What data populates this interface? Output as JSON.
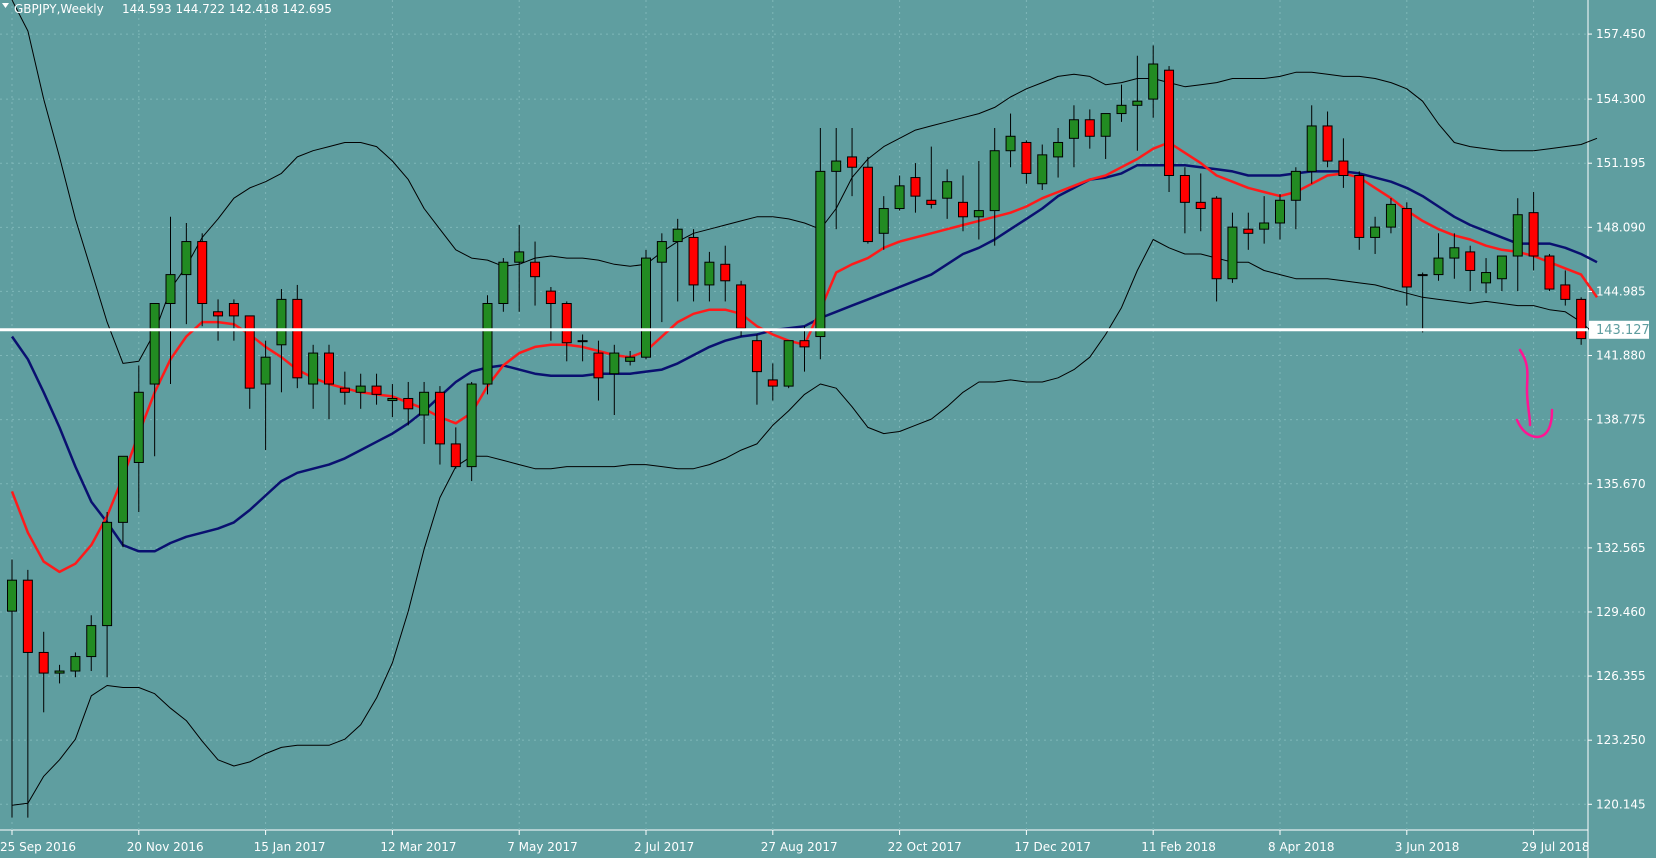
{
  "header": {
    "symbol": "GBPJPY,Weekly",
    "ohlc": "144.593 144.722 142.418 142.695"
  },
  "current_price_label": "143.127",
  "colors": {
    "background": "#5f9ea0",
    "bull": "#228b22",
    "bear": "#ff0000",
    "candle_outline": "#000000",
    "ma_fast": "#ff1a1a",
    "ma_slow": "#0a1070",
    "bands": "#000000",
    "price_line": "#ffffff",
    "annotation": "#ff1493",
    "grid": "#7fb7b8"
  },
  "chart_data": {
    "type": "candlestick",
    "title": "GBPJPY,Weekly",
    "ylim": [
      118.9,
      159.1
    ],
    "y_ticks": [
      "157.450",
      "154.300",
      "151.195",
      "148.090",
      "144.985",
      "141.880",
      "138.775",
      "135.670",
      "132.565",
      "129.460",
      "126.355",
      "123.250",
      "120.145"
    ],
    "x_ticks": [
      {
        "label": "25 Sep 2016",
        "index": 0
      },
      {
        "label": "20 Nov 2016",
        "index": 8
      },
      {
        "label": "15 Jan 2017",
        "index": 16
      },
      {
        "label": "12 Mar 2017",
        "index": 24
      },
      {
        "label": "7 May 2017",
        "index": 32
      },
      {
        "label": "2 Jul 2017",
        "index": 40
      },
      {
        "label": "27 Aug 2017",
        "index": 48
      },
      {
        "label": "22 Oct 2017",
        "index": 56
      },
      {
        "label": "17 Dec 2017",
        "index": 64
      },
      {
        "label": "11 Feb 2018",
        "index": 72
      },
      {
        "label": "8 Apr 2018",
        "index": 80
      },
      {
        "label": "3 Jun 2018",
        "index": 88
      },
      {
        "label": "29 Jul 2018",
        "index": 96
      }
    ],
    "candles": [
      [
        129.5,
        132.0,
        119.5,
        131.0
      ],
      [
        131.0,
        131.5,
        119.5,
        127.5
      ],
      [
        127.5,
        128.5,
        124.6,
        126.5
      ],
      [
        126.5,
        126.9,
        126.0,
        126.6
      ],
      [
        126.6,
        127.5,
        126.3,
        127.3
      ],
      [
        127.3,
        129.3,
        126.6,
        128.8
      ],
      [
        128.8,
        134.3,
        126.3,
        133.8
      ],
      [
        133.8,
        136.9,
        132.6,
        137.0
      ],
      [
        136.7,
        141.4,
        134.3,
        140.1
      ],
      [
        140.5,
        144.3,
        137.0,
        144.4
      ],
      [
        144.4,
        148.6,
        140.5,
        145.8
      ],
      [
        145.8,
        148.3,
        143.4,
        147.4
      ],
      [
        147.4,
        147.8,
        143.3,
        144.4
      ],
      [
        144.0,
        144.6,
        142.6,
        143.8
      ],
      [
        144.4,
        144.6,
        142.6,
        143.8
      ],
      [
        143.8,
        143.6,
        139.3,
        140.3
      ],
      [
        140.5,
        142.6,
        137.3,
        141.8
      ],
      [
        142.4,
        145.1,
        140.1,
        144.6
      ],
      [
        144.6,
        145.3,
        140.3,
        140.8
      ],
      [
        140.5,
        142.4,
        139.3,
        142.0
      ],
      [
        142.0,
        142.4,
        138.8,
        140.5
      ],
      [
        140.3,
        141.1,
        139.5,
        140.1
      ],
      [
        140.1,
        141.0,
        139.3,
        140.4
      ],
      [
        140.4,
        141.0,
        139.5,
        140.0
      ],
      [
        139.7,
        140.5,
        138.9,
        139.8
      ],
      [
        139.8,
        140.6,
        138.5,
        139.3
      ],
      [
        139.0,
        140.6,
        137.6,
        140.1
      ],
      [
        140.1,
        140.4,
        136.6,
        137.6
      ],
      [
        137.6,
        138.4,
        136.4,
        136.5
      ],
      [
        136.5,
        140.6,
        135.8,
        140.5
      ],
      [
        140.5,
        144.8,
        140.0,
        144.4
      ],
      [
        144.4,
        146.6,
        144.0,
        146.4
      ],
      [
        146.4,
        148.2,
        144.0,
        146.9
      ],
      [
        146.4,
        147.4,
        144.3,
        145.7
      ],
      [
        145.0,
        145.2,
        142.6,
        144.4
      ],
      [
        144.4,
        144.5,
        141.6,
        142.5
      ],
      [
        142.6,
        142.9,
        141.6,
        142.6
      ],
      [
        142.0,
        142.6,
        139.7,
        140.8
      ],
      [
        141.0,
        142.4,
        139.0,
        142.0
      ],
      [
        141.6,
        142.1,
        141.4,
        141.8
      ],
      [
        141.8,
        147.0,
        141.7,
        146.6
      ],
      [
        146.4,
        147.8,
        143.5,
        147.4
      ],
      [
        147.4,
        148.5,
        144.5,
        148.0
      ],
      [
        147.6,
        148.0,
        144.5,
        145.3
      ],
      [
        145.3,
        146.9,
        144.5,
        146.4
      ],
      [
        146.3,
        147.2,
        144.5,
        145.5
      ],
      [
        145.3,
        145.5,
        142.8,
        143.2
      ],
      [
        142.6,
        142.9,
        139.5,
        141.1
      ],
      [
        140.7,
        141.5,
        139.7,
        140.4
      ],
      [
        140.4,
        142.6,
        140.3,
        142.6
      ],
      [
        142.6,
        143.3,
        141.1,
        142.3
      ],
      [
        142.8,
        152.9,
        141.7,
        150.8
      ],
      [
        150.8,
        152.9,
        148.0,
        151.3
      ],
      [
        151.5,
        152.9,
        149.6,
        151.0
      ],
      [
        151.0,
        151.5,
        147.3,
        147.4
      ],
      [
        147.8,
        149.6,
        147.0,
        149.0
      ],
      [
        149.0,
        150.6,
        148.9,
        150.1
      ],
      [
        150.5,
        151.2,
        148.8,
        149.6
      ],
      [
        149.4,
        152.0,
        149.0,
        149.2
      ],
      [
        149.5,
        150.9,
        148.5,
        150.3
      ],
      [
        149.3,
        150.6,
        147.9,
        148.6
      ],
      [
        148.6,
        151.3,
        147.5,
        148.9
      ],
      [
        148.9,
        152.9,
        147.2,
        151.8
      ],
      [
        151.8,
        153.6,
        151.0,
        152.5
      ],
      [
        152.2,
        152.3,
        150.2,
        150.7
      ],
      [
        150.2,
        152.1,
        149.9,
        151.6
      ],
      [
        151.5,
        152.9,
        150.5,
        152.2
      ],
      [
        152.4,
        154.0,
        151.0,
        153.3
      ],
      [
        153.3,
        153.8,
        151.9,
        152.5
      ],
      [
        152.5,
        153.5,
        151.4,
        153.6
      ],
      [
        153.6,
        155.0,
        153.2,
        154.0
      ],
      [
        154.0,
        156.4,
        151.8,
        154.2
      ],
      [
        154.3,
        156.9,
        153.4,
        156.0
      ],
      [
        155.7,
        155.9,
        149.8,
        150.6
      ],
      [
        150.6,
        151.0,
        147.8,
        149.3
      ],
      [
        149.3,
        150.7,
        147.9,
        149.0
      ],
      [
        149.5,
        149.6,
        144.5,
        145.6
      ],
      [
        145.6,
        148.8,
        145.4,
        148.1
      ],
      [
        148.0,
        148.8,
        147.0,
        147.8
      ],
      [
        148.0,
        149.6,
        147.3,
        148.3
      ],
      [
        148.3,
        149.7,
        147.5,
        149.4
      ],
      [
        149.4,
        151.0,
        148.0,
        150.8
      ],
      [
        150.8,
        154.0,
        150.2,
        153.0
      ],
      [
        153.0,
        153.7,
        151.0,
        151.3
      ],
      [
        151.3,
        152.4,
        150.0,
        150.6
      ],
      [
        150.6,
        150.8,
        147.0,
        147.6
      ],
      [
        147.6,
        148.6,
        146.8,
        148.1
      ],
      [
        148.1,
        149.5,
        147.8,
        149.2
      ],
      [
        149.0,
        149.3,
        144.3,
        145.2
      ],
      [
        145.8,
        145.9,
        143.0,
        145.8
      ],
      [
        145.8,
        147.8,
        145.5,
        146.6
      ],
      [
        146.6,
        147.8,
        145.6,
        147.1
      ],
      [
        146.9,
        147.2,
        145.0,
        146.0
      ],
      [
        145.4,
        146.6,
        144.9,
        145.9
      ],
      [
        145.6,
        146.5,
        145.0,
        146.7
      ],
      [
        146.7,
        149.5,
        145.0,
        148.7
      ],
      [
        148.8,
        149.8,
        146.0,
        146.7
      ],
      [
        146.7,
        146.8,
        145.0,
        145.1
      ],
      [
        145.3,
        146.0,
        144.3,
        144.6
      ],
      [
        144.6,
        144.7,
        142.4,
        142.7
      ]
    ],
    "ma_fast": [
      135.3,
      133.3,
      131.9,
      131.4,
      131.8,
      132.7,
      134.1,
      136.0,
      138.1,
      140.1,
      141.7,
      142.8,
      143.5,
      143.5,
      143.4,
      142.9,
      142.3,
      141.8,
      141.2,
      140.8,
      140.5,
      140.3,
      140.1,
      140.0,
      139.9,
      139.6,
      139.3,
      138.9,
      138.6,
      139.1,
      140.4,
      141.4,
      142.0,
      142.3,
      142.4,
      142.4,
      142.3,
      142.1,
      141.9,
      141.8,
      142.1,
      142.8,
      143.5,
      143.9,
      144.1,
      144.1,
      143.9,
      143.3,
      142.9,
      142.6,
      142.4,
      144.1,
      145.9,
      146.3,
      146.6,
      147.1,
      147.4,
      147.6,
      147.8,
      148.0,
      148.2,
      148.4,
      148.6,
      148.8,
      149.1,
      149.5,
      149.8,
      150.1,
      150.4,
      150.6,
      151.0,
      151.4,
      151.9,
      152.2,
      151.7,
      151.2,
      150.6,
      150.3,
      150.0,
      149.8,
      149.6,
      149.8,
      150.2,
      150.6,
      150.7,
      150.5,
      150.0,
      149.5,
      148.9,
      148.4,
      148.0,
      147.7,
      147.5,
      147.2,
      147.0,
      146.9,
      146.7,
      146.4,
      146.1,
      145.8,
      144.7
    ],
    "ma_slow": [
      142.8,
      141.7,
      140.1,
      138.4,
      136.5,
      134.8,
      133.8,
      132.7,
      132.4,
      132.4,
      132.8,
      133.1,
      133.3,
      133.5,
      133.8,
      134.4,
      135.1,
      135.8,
      136.2,
      136.4,
      136.6,
      136.9,
      137.3,
      137.7,
      138.1,
      138.6,
      139.2,
      139.9,
      140.6,
      141.1,
      141.3,
      141.4,
      141.2,
      141.0,
      140.9,
      140.9,
      140.9,
      141.0,
      141.0,
      141.0,
      141.1,
      141.2,
      141.5,
      141.9,
      142.3,
      142.6,
      142.8,
      142.9,
      143.1,
      143.2,
      143.3,
      143.7,
      144.0,
      144.3,
      144.6,
      144.9,
      145.2,
      145.5,
      145.8,
      146.3,
      146.8,
      147.1,
      147.5,
      148.0,
      148.5,
      149.0,
      149.6,
      150.0,
      150.4,
      150.5,
      150.7,
      151.1,
      151.1,
      151.1,
      151.1,
      151.0,
      150.9,
      150.8,
      150.6,
      150.6,
      150.6,
      150.7,
      150.8,
      150.8,
      150.8,
      150.7,
      150.5,
      150.3,
      150.0,
      149.6,
      149.1,
      148.6,
      148.2,
      147.9,
      147.6,
      147.3,
      147.3,
      147.3,
      147.1,
      146.8,
      146.4
    ],
    "upper_band": [
      159.1,
      157.6,
      154.3,
      151.5,
      148.5,
      146.0,
      143.5,
      141.5,
      141.6,
      143.0,
      145.1,
      146.2,
      147.6,
      148.5,
      149.5,
      150.0,
      150.3,
      150.7,
      151.5,
      151.8,
      152.0,
      152.2,
      152.2,
      152.0,
      151.3,
      150.4,
      149.0,
      148.0,
      147.0,
      146.6,
      146.5,
      146.2,
      146.3,
      146.6,
      146.7,
      146.6,
      146.6,
      146.5,
      146.3,
      146.2,
      146.3,
      146.9,
      147.4,
      147.8,
      148.0,
      148.2,
      148.4,
      148.6,
      148.6,
      148.5,
      148.3,
      148.0,
      149.0,
      150.5,
      151.4,
      152.0,
      152.4,
      152.8,
      153.0,
      153.2,
      153.4,
      153.6,
      153.9,
      154.4,
      154.8,
      155.1,
      155.4,
      155.5,
      155.4,
      155.0,
      155.1,
      155.3,
      155.3,
      155.1,
      154.9,
      155.0,
      155.1,
      155.3,
      155.3,
      155.3,
      155.4,
      155.6,
      155.6,
      155.5,
      155.4,
      155.4,
      155.3,
      155.1,
      154.8,
      154.2,
      153.1,
      152.2,
      152.0,
      151.9,
      151.8,
      151.8,
      151.8,
      151.9,
      152.0,
      152.1,
      152.4
    ],
    "lower_band": [
      120.1,
      120.2,
      121.5,
      122.3,
      123.3,
      125.4,
      125.9,
      125.8,
      125.8,
      125.5,
      124.8,
      124.2,
      123.2,
      122.3,
      122.0,
      122.2,
      122.6,
      122.9,
      123.0,
      123.0,
      123.0,
      123.3,
      124.0,
      125.3,
      127.0,
      129.5,
      132.5,
      135.0,
      136.5,
      137.0,
      137.0,
      136.8,
      136.6,
      136.4,
      136.4,
      136.5,
      136.5,
      136.5,
      136.5,
      136.6,
      136.6,
      136.5,
      136.4,
      136.4,
      136.6,
      136.9,
      137.3,
      137.6,
      138.5,
      139.2,
      140.0,
      140.5,
      140.3,
      139.4,
      138.4,
      138.1,
      138.2,
      138.5,
      138.8,
      139.4,
      140.1,
      140.6,
      140.6,
      140.7,
      140.6,
      140.6,
      140.8,
      141.2,
      141.8,
      142.9,
      144.2,
      146.0,
      147.5,
      147.1,
      146.8,
      146.8,
      146.6,
      146.4,
      146.4,
      146.0,
      145.8,
      145.6,
      145.6,
      145.6,
      145.5,
      145.4,
      145.3,
      145.1,
      144.9,
      144.7,
      144.6,
      144.5,
      144.4,
      144.5,
      144.4,
      144.3,
      144.3,
      144.1,
      144.0,
      143.5,
      142.8
    ],
    "price_line": 143.127
  }
}
